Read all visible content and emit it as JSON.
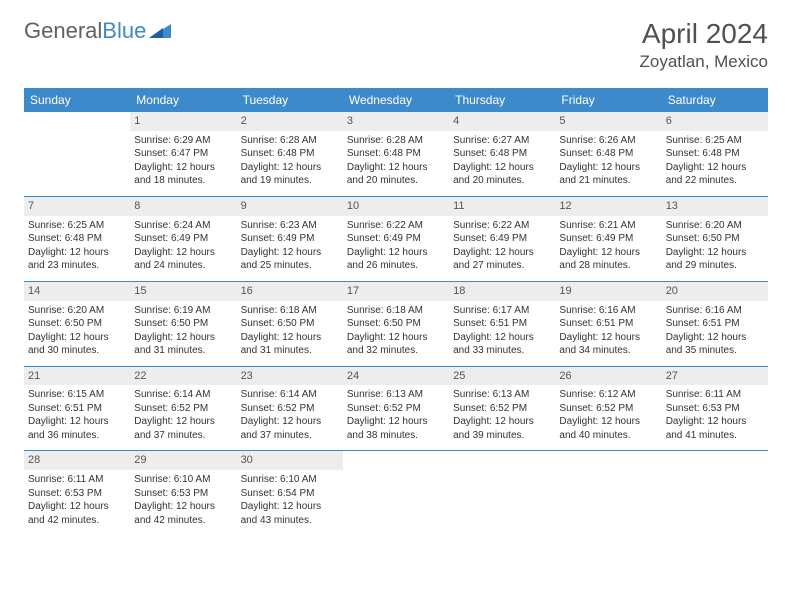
{
  "brand": {
    "part1": "General",
    "part2": "Blue"
  },
  "title": "April 2024",
  "location": "Zoyatlan, Mexico",
  "colors": {
    "header_bg": "#3c8ac9",
    "header_text": "#ffffff",
    "daynum_bg": "#ededed",
    "text": "#333333",
    "border": "#3c8ac9",
    "background": "#ffffff"
  },
  "font": {
    "family": "Arial",
    "cell_size_pt": 7.5,
    "header_size_pt": 9,
    "title_size_pt": 21
  },
  "days": [
    "Sunday",
    "Monday",
    "Tuesday",
    "Wednesday",
    "Thursday",
    "Friday",
    "Saturday"
  ],
  "weeks": [
    [
      null,
      {
        "n": "1",
        "sunrise": "Sunrise: 6:29 AM",
        "sunset": "Sunset: 6:47 PM",
        "day": "Daylight: 12 hours and 18 minutes."
      },
      {
        "n": "2",
        "sunrise": "Sunrise: 6:28 AM",
        "sunset": "Sunset: 6:48 PM",
        "day": "Daylight: 12 hours and 19 minutes."
      },
      {
        "n": "3",
        "sunrise": "Sunrise: 6:28 AM",
        "sunset": "Sunset: 6:48 PM",
        "day": "Daylight: 12 hours and 20 minutes."
      },
      {
        "n": "4",
        "sunrise": "Sunrise: 6:27 AM",
        "sunset": "Sunset: 6:48 PM",
        "day": "Daylight: 12 hours and 20 minutes."
      },
      {
        "n": "5",
        "sunrise": "Sunrise: 6:26 AM",
        "sunset": "Sunset: 6:48 PM",
        "day": "Daylight: 12 hours and 21 minutes."
      },
      {
        "n": "6",
        "sunrise": "Sunrise: 6:25 AM",
        "sunset": "Sunset: 6:48 PM",
        "day": "Daylight: 12 hours and 22 minutes."
      }
    ],
    [
      {
        "n": "7",
        "sunrise": "Sunrise: 6:25 AM",
        "sunset": "Sunset: 6:48 PM",
        "day": "Daylight: 12 hours and 23 minutes."
      },
      {
        "n": "8",
        "sunrise": "Sunrise: 6:24 AM",
        "sunset": "Sunset: 6:49 PM",
        "day": "Daylight: 12 hours and 24 minutes."
      },
      {
        "n": "9",
        "sunrise": "Sunrise: 6:23 AM",
        "sunset": "Sunset: 6:49 PM",
        "day": "Daylight: 12 hours and 25 minutes."
      },
      {
        "n": "10",
        "sunrise": "Sunrise: 6:22 AM",
        "sunset": "Sunset: 6:49 PM",
        "day": "Daylight: 12 hours and 26 minutes."
      },
      {
        "n": "11",
        "sunrise": "Sunrise: 6:22 AM",
        "sunset": "Sunset: 6:49 PM",
        "day": "Daylight: 12 hours and 27 minutes."
      },
      {
        "n": "12",
        "sunrise": "Sunrise: 6:21 AM",
        "sunset": "Sunset: 6:49 PM",
        "day": "Daylight: 12 hours and 28 minutes."
      },
      {
        "n": "13",
        "sunrise": "Sunrise: 6:20 AM",
        "sunset": "Sunset: 6:50 PM",
        "day": "Daylight: 12 hours and 29 minutes."
      }
    ],
    [
      {
        "n": "14",
        "sunrise": "Sunrise: 6:20 AM",
        "sunset": "Sunset: 6:50 PM",
        "day": "Daylight: 12 hours and 30 minutes."
      },
      {
        "n": "15",
        "sunrise": "Sunrise: 6:19 AM",
        "sunset": "Sunset: 6:50 PM",
        "day": "Daylight: 12 hours and 31 minutes."
      },
      {
        "n": "16",
        "sunrise": "Sunrise: 6:18 AM",
        "sunset": "Sunset: 6:50 PM",
        "day": "Daylight: 12 hours and 31 minutes."
      },
      {
        "n": "17",
        "sunrise": "Sunrise: 6:18 AM",
        "sunset": "Sunset: 6:50 PM",
        "day": "Daylight: 12 hours and 32 minutes."
      },
      {
        "n": "18",
        "sunrise": "Sunrise: 6:17 AM",
        "sunset": "Sunset: 6:51 PM",
        "day": "Daylight: 12 hours and 33 minutes."
      },
      {
        "n": "19",
        "sunrise": "Sunrise: 6:16 AM",
        "sunset": "Sunset: 6:51 PM",
        "day": "Daylight: 12 hours and 34 minutes."
      },
      {
        "n": "20",
        "sunrise": "Sunrise: 6:16 AM",
        "sunset": "Sunset: 6:51 PM",
        "day": "Daylight: 12 hours and 35 minutes."
      }
    ],
    [
      {
        "n": "21",
        "sunrise": "Sunrise: 6:15 AM",
        "sunset": "Sunset: 6:51 PM",
        "day": "Daylight: 12 hours and 36 minutes."
      },
      {
        "n": "22",
        "sunrise": "Sunrise: 6:14 AM",
        "sunset": "Sunset: 6:52 PM",
        "day": "Daylight: 12 hours and 37 minutes."
      },
      {
        "n": "23",
        "sunrise": "Sunrise: 6:14 AM",
        "sunset": "Sunset: 6:52 PM",
        "day": "Daylight: 12 hours and 37 minutes."
      },
      {
        "n": "24",
        "sunrise": "Sunrise: 6:13 AM",
        "sunset": "Sunset: 6:52 PM",
        "day": "Daylight: 12 hours and 38 minutes."
      },
      {
        "n": "25",
        "sunrise": "Sunrise: 6:13 AM",
        "sunset": "Sunset: 6:52 PM",
        "day": "Daylight: 12 hours and 39 minutes."
      },
      {
        "n": "26",
        "sunrise": "Sunrise: 6:12 AM",
        "sunset": "Sunset: 6:52 PM",
        "day": "Daylight: 12 hours and 40 minutes."
      },
      {
        "n": "27",
        "sunrise": "Sunrise: 6:11 AM",
        "sunset": "Sunset: 6:53 PM",
        "day": "Daylight: 12 hours and 41 minutes."
      }
    ],
    [
      {
        "n": "28",
        "sunrise": "Sunrise: 6:11 AM",
        "sunset": "Sunset: 6:53 PM",
        "day": "Daylight: 12 hours and 42 minutes."
      },
      {
        "n": "29",
        "sunrise": "Sunrise: 6:10 AM",
        "sunset": "Sunset: 6:53 PM",
        "day": "Daylight: 12 hours and 42 minutes."
      },
      {
        "n": "30",
        "sunrise": "Sunrise: 6:10 AM",
        "sunset": "Sunset: 6:54 PM",
        "day": "Daylight: 12 hours and 43 minutes."
      },
      null,
      null,
      null,
      null
    ]
  ]
}
